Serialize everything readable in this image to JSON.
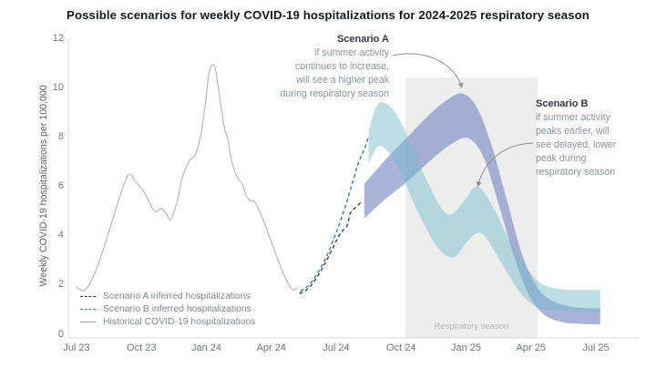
{
  "title": "Possible scenarios for weekly COVID-19 hospitalizations for 2024-2025 respiratory season",
  "legend": {
    "items": [
      {
        "label": "Scenario A inferred hospitalizations",
        "color": "#36434f",
        "style": "dashed"
      },
      {
        "label": "Scenario B inferred hospitalizations",
        "color": "#2f7da1",
        "style": "dashed"
      },
      {
        "label": "Historical COVID-19 hospitalizations",
        "color": "#9c9c9c",
        "style": "solid"
      }
    ]
  },
  "annotations": {
    "scenario_a": {
      "title": "Scenario A",
      "lines": [
        "if summer activity",
        "continues to increase,",
        "will see a higher peak",
        "during respiratory season"
      ],
      "arrow_from": [
        14.6,
        11.3
      ],
      "arrow_to": [
        17.8,
        10.0
      ]
    },
    "scenario_b": {
      "title": "Scenario B",
      "lines": [
        "if summer activity",
        "peaks earlier, will",
        "see delayed, lower",
        "peak during",
        "respiratory season"
      ],
      "arrow_from": [
        21.1,
        7.75
      ],
      "arrow_to": [
        18.55,
        6.0
      ]
    }
  },
  "respiratory_season": {
    "label": "Respiratory season",
    "start_month": 15.2,
    "end_month": 21.3,
    "top_value": 10.4
  },
  "chart_data": {
    "type": "line",
    "title": "Possible scenarios for weekly COVID-19 hospitalizations for 2024-2025 respiratory season",
    "xlabel": "",
    "ylabel": "Weekly COVID-19 hospitalizations per 100,000",
    "ylim": [
      0,
      12
    ],
    "y_ticks": [
      0,
      2,
      4,
      6,
      8,
      10,
      12
    ],
    "x_unit": "months since Jul 2023",
    "x_ticks": [
      {
        "label": "Jul 23",
        "month": 0
      },
      {
        "label": "Oct 23",
        "month": 3
      },
      {
        "label": "Jan 24",
        "month": 6
      },
      {
        "label": "Apr 24",
        "month": 9
      },
      {
        "label": "Jul 24",
        "month": 12
      },
      {
        "label": "Oct 24",
        "month": 15
      },
      {
        "label": "Jan 25",
        "month": 18
      },
      {
        "label": "Apr 25",
        "month": 21
      },
      {
        "label": "Jul 25",
        "month": 24
      }
    ],
    "grid": false,
    "legend_position": "lower-left",
    "series": [
      {
        "name": "Historical COVID-19 hospitalizations",
        "kind": "line",
        "line_style": "solid",
        "color": "#b9b9b9",
        "points": [
          [
            0,
            1.9
          ],
          [
            0.4,
            1.8
          ],
          [
            0.9,
            2.6
          ],
          [
            1.4,
            3.9
          ],
          [
            1.9,
            5.3
          ],
          [
            2.2,
            6.1
          ],
          [
            2.45,
            6.5
          ],
          [
            2.75,
            6.15
          ],
          [
            3.1,
            5.8
          ],
          [
            3.6,
            5.0
          ],
          [
            3.9,
            5.1
          ],
          [
            4.15,
            4.9
          ],
          [
            4.35,
            4.65
          ],
          [
            4.65,
            5.4
          ],
          [
            4.9,
            6.4
          ],
          [
            5.2,
            7.0
          ],
          [
            5.5,
            7.3
          ],
          [
            5.75,
            8.1
          ],
          [
            5.95,
            9.3
          ],
          [
            6.1,
            10.5
          ],
          [
            6.25,
            10.9
          ],
          [
            6.4,
            10.8
          ],
          [
            6.55,
            10.0
          ],
          [
            6.7,
            9.1
          ],
          [
            6.85,
            8.3
          ],
          [
            7.0,
            7.9
          ],
          [
            7.15,
            7.1
          ],
          [
            7.4,
            6.4
          ],
          [
            7.65,
            6.1
          ],
          [
            7.85,
            5.6
          ],
          [
            8.05,
            5.4
          ],
          [
            8.25,
            5.35
          ],
          [
            8.55,
            4.8
          ],
          [
            8.85,
            4.1
          ],
          [
            9.15,
            3.4
          ],
          [
            9.45,
            2.7
          ],
          [
            9.75,
            2.1
          ],
          [
            10.0,
            1.8
          ],
          [
            10.2,
            1.9
          ]
        ]
      },
      {
        "name": "Scenario A inferred hospitalizations",
        "kind": "line",
        "line_style": "dashed",
        "color": "#36434f",
        "points": [
          [
            10.3,
            1.65
          ],
          [
            10.7,
            1.85
          ],
          [
            11.1,
            2.3
          ],
          [
            11.5,
            2.9
          ],
          [
            11.9,
            3.6
          ],
          [
            12.2,
            4.1
          ],
          [
            12.5,
            4.4
          ],
          [
            12.65,
            4.9
          ],
          [
            12.9,
            5.15
          ],
          [
            13.2,
            5.4
          ]
        ]
      },
      {
        "name": "Scenario B inferred hospitalizations",
        "kind": "line",
        "line_style": "dashed",
        "color": "#2f7da1",
        "points": [
          [
            10.35,
            1.75
          ],
          [
            10.75,
            2.0
          ],
          [
            11.15,
            2.5
          ],
          [
            11.55,
            3.15
          ],
          [
            11.9,
            3.9
          ],
          [
            12.2,
            4.6
          ],
          [
            12.5,
            5.4
          ],
          [
            12.8,
            6.3
          ],
          [
            13.05,
            7.0
          ],
          [
            13.3,
            7.5
          ],
          [
            13.5,
            8.05
          ]
        ]
      },
      {
        "name": "Scenario A projection band",
        "kind": "band",
        "color": "rgba(125,140,195,0.65)",
        "upper": [
          [
            13.3,
            6.1
          ],
          [
            14.3,
            7.1
          ],
          [
            15.3,
            8.0
          ],
          [
            16.3,
            8.9
          ],
          [
            17.2,
            9.55
          ],
          [
            17.85,
            9.75
          ],
          [
            18.5,
            9.2
          ],
          [
            19.2,
            7.6
          ],
          [
            19.9,
            5.4
          ],
          [
            20.6,
            3.2
          ],
          [
            21.3,
            1.9
          ],
          [
            22.0,
            1.35
          ],
          [
            23.0,
            1.1
          ],
          [
            24.2,
            1.05
          ]
        ],
        "lower": [
          [
            13.3,
            4.7
          ],
          [
            14.3,
            5.5
          ],
          [
            15.3,
            6.2
          ],
          [
            16.3,
            7.0
          ],
          [
            17.3,
            7.7
          ],
          [
            18.1,
            7.95
          ],
          [
            18.8,
            7.2
          ],
          [
            19.5,
            5.3
          ],
          [
            20.2,
            3.2
          ],
          [
            20.9,
            1.6
          ],
          [
            21.6,
            0.8
          ],
          [
            22.4,
            0.5
          ],
          [
            23.3,
            0.42
          ],
          [
            24.2,
            0.4
          ]
        ]
      },
      {
        "name": "Scenario B projection band",
        "kind": "band",
        "color": "rgba(120,185,205,0.48)",
        "upper": [
          [
            13.5,
            8.2
          ],
          [
            13.8,
            9.15
          ],
          [
            14.2,
            9.4
          ],
          [
            14.8,
            8.9
          ],
          [
            15.5,
            7.6
          ],
          [
            16.2,
            6.2
          ],
          [
            16.8,
            5.2
          ],
          [
            17.3,
            4.85
          ],
          [
            17.9,
            5.4
          ],
          [
            18.4,
            5.95
          ],
          [
            18.8,
            5.8
          ],
          [
            19.4,
            4.9
          ],
          [
            20.0,
            3.8
          ],
          [
            20.7,
            2.8
          ],
          [
            21.4,
            2.1
          ],
          [
            22.2,
            1.85
          ],
          [
            23.2,
            1.8
          ],
          [
            24.2,
            1.8
          ]
        ],
        "lower": [
          [
            13.5,
            6.9
          ],
          [
            13.9,
            7.6
          ],
          [
            14.35,
            7.45
          ],
          [
            15.0,
            6.5
          ],
          [
            15.7,
            5.1
          ],
          [
            16.4,
            3.9
          ],
          [
            17.0,
            3.25
          ],
          [
            17.5,
            3.15
          ],
          [
            18.0,
            3.7
          ],
          [
            18.5,
            4.1
          ],
          [
            18.9,
            3.95
          ],
          [
            19.5,
            3.1
          ],
          [
            20.1,
            2.2
          ],
          [
            20.8,
            1.4
          ],
          [
            21.5,
            1.05
          ],
          [
            22.3,
            0.95
          ],
          [
            23.3,
            0.92
          ],
          [
            24.2,
            0.9
          ]
        ]
      }
    ]
  }
}
